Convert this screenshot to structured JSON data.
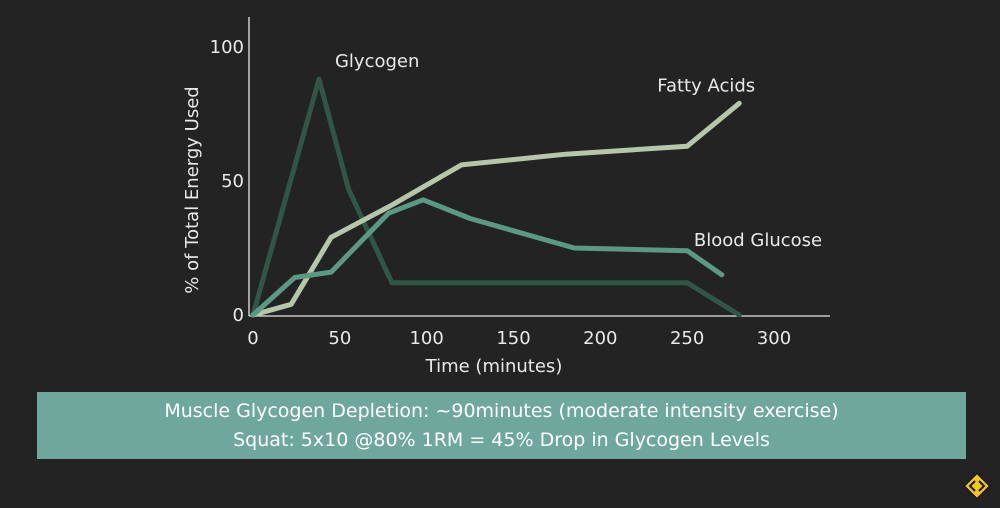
{
  "chart_data": {
    "type": "line",
    "xlabel": "Time (minutes)",
    "ylabel": "% of Total Energy Used",
    "xlim": [
      0,
      300
    ],
    "ylim": [
      0,
      100
    ],
    "x_ticks": [
      "0",
      "50",
      "100",
      "150",
      "200",
      "250",
      "300"
    ],
    "y_ticks": [
      "0",
      "50",
      "100"
    ],
    "grid": false,
    "series": [
      {
        "name": "Glycogen",
        "color": "#2f5646",
        "points": [
          [
            0,
            0
          ],
          [
            38,
            88
          ],
          [
            55,
            47
          ],
          [
            80,
            12
          ],
          [
            250,
            12
          ],
          [
            280,
            0
          ]
        ]
      },
      {
        "name": "Fatty Acids",
        "color": "#b6c6a9",
        "points": [
          [
            0,
            0
          ],
          [
            22,
            4
          ],
          [
            45,
            29
          ],
          [
            80,
            41
          ],
          [
            120,
            56
          ],
          [
            180,
            60
          ],
          [
            250,
            63
          ],
          [
            280,
            79
          ]
        ]
      },
      {
        "name": "Blood Glucose",
        "color": "#5a9a84",
        "points": [
          [
            0,
            0
          ],
          [
            24,
            14
          ],
          [
            45,
            16
          ],
          [
            78,
            38
          ],
          [
            98,
            43
          ],
          [
            125,
            36
          ],
          [
            185,
            25
          ],
          [
            250,
            24
          ],
          [
            270,
            15
          ]
        ]
      }
    ]
  },
  "banner": {
    "line1": "Muscle Glycogen Depletion: ~90minutes (moderate intensity exercise)",
    "line2": "Squat: 5x10 @80% 1RM = 45% Drop in Glycogen Levels"
  },
  "logo": {
    "icon": "diamond-arrows-logo-icon",
    "color": "#f5c518"
  }
}
